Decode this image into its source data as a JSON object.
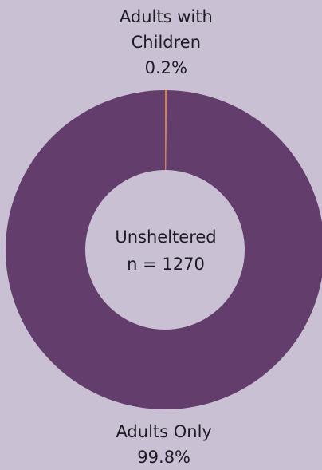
{
  "chart_data": {
    "type": "donut",
    "categories": [
      "Adults with Children",
      "Adults Only"
    ],
    "values": [
      0.2,
      99.8
    ],
    "value_labels": [
      "0.2%",
      "99.8%"
    ],
    "colors": [
      "#d4804a",
      "#633d6b"
    ],
    "center_text": [
      "Unsheltered",
      "n = 1270"
    ]
  }
}
